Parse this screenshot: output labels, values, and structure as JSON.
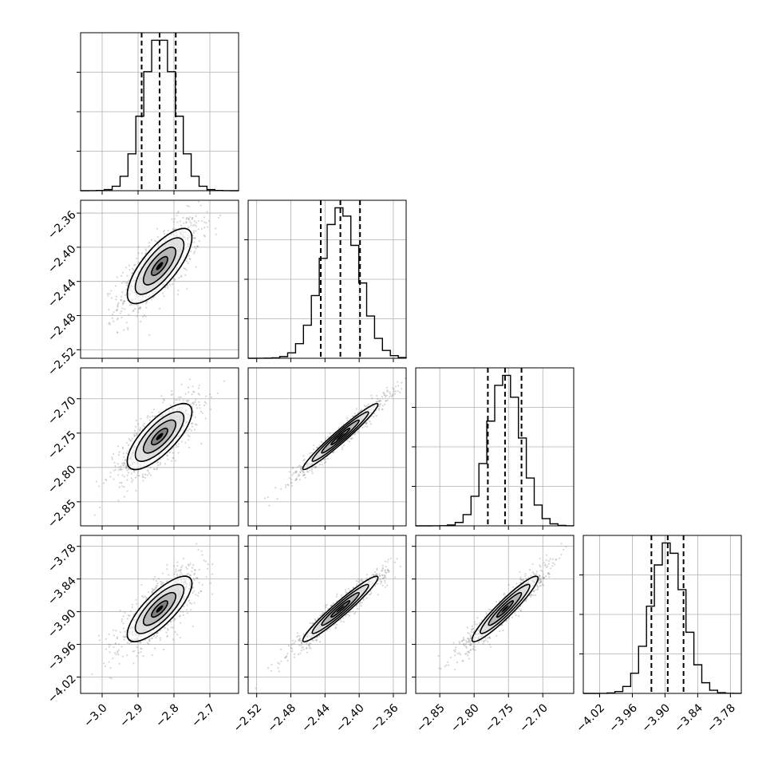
{
  "chart_data": {
    "type": "corner",
    "title": "",
    "variables": [
      {
        "index": 0,
        "range": [
          -3.06,
          -2.62
        ],
        "ticks": [
          -3.0,
          -2.9,
          -2.8,
          -2.7
        ],
        "tick_labels": [
          "−3.0",
          "−2.9",
          "−2.8",
          "−2.7"
        ],
        "mean": -2.84,
        "std": 0.045,
        "quantiles": [
          -2.89,
          -2.84,
          -2.795
        ]
      },
      {
        "index": 1,
        "range": [
          -2.53,
          -2.345
        ],
        "ticks": [
          -2.52,
          -2.48,
          -2.44,
          -2.4,
          -2.36
        ],
        "tick_labels": [
          "−2.52",
          "−2.48",
          "−2.44",
          "−2.40",
          "−2.36"
        ],
        "mean": -2.422,
        "std": 0.022,
        "quantiles": [
          -2.445,
          -2.422,
          -2.399
        ]
      },
      {
        "index": 2,
        "range": [
          -2.885,
          -2.655
        ],
        "ticks": [
          -2.85,
          -2.8,
          -2.75,
          -2.7
        ],
        "tick_labels": [
          "−2.85",
          "−2.80",
          "−2.75",
          "−2.70"
        ],
        "mean": -2.755,
        "std": 0.024,
        "quantiles": [
          -2.78,
          -2.755,
          -2.731
        ]
      },
      {
        "index": 3,
        "range": [
          -4.05,
          -3.76
        ],
        "ticks": [
          -4.02,
          -3.96,
          -3.9,
          -3.84,
          -3.78
        ],
        "tick_labels": [
          "−4.02",
          "−3.96",
          "−3.90",
          "−3.84",
          "−3.78"
        ],
        "mean": -3.895,
        "std": 0.03,
        "quantiles": [
          -3.925,
          -3.895,
          -3.866
        ]
      }
    ],
    "pairs": [
      {
        "row": 1,
        "col": 0,
        "correlation": 0.75
      },
      {
        "row": 2,
        "col": 0,
        "correlation": 0.75
      },
      {
        "row": 2,
        "col": 1,
        "correlation": 0.97
      },
      {
        "row": 3,
        "col": 0,
        "correlation": 0.78
      },
      {
        "row": 3,
        "col": 1,
        "correlation": 0.96
      },
      {
        "row": 3,
        "col": 2,
        "correlation": 0.94
      }
    ],
    "histogram_bins": 20,
    "contour_levels_sigma": [
      0.5,
      1.0,
      1.5,
      2.0
    ],
    "grid": true,
    "colors": {
      "scatter": "#8a8a8a",
      "line": "#000000",
      "grid": "#b0b0b0"
    }
  }
}
